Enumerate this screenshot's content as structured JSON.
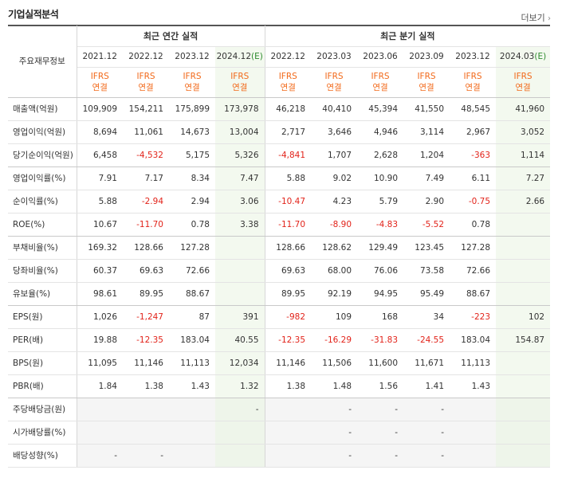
{
  "title": "기업실적분석",
  "more_label": "더보기",
  "corner_label": "주요재무정보",
  "groups": {
    "annual": "최근 연간 실적",
    "quarterly": "최근 분기 실적"
  },
  "periods": [
    {
      "label": "2021.12",
      "est": ""
    },
    {
      "label": "2022.12",
      "est": ""
    },
    {
      "label": "2023.12",
      "est": ""
    },
    {
      "label": "2024.12",
      "est": "(E)"
    },
    {
      "label": "2022.12",
      "est": ""
    },
    {
      "label": "2023.03",
      "est": ""
    },
    {
      "label": "2023.06",
      "est": ""
    },
    {
      "label": "2023.09",
      "est": ""
    },
    {
      "label": "2023.12",
      "est": ""
    },
    {
      "label": "2024.03",
      "est": "(E)"
    }
  ],
  "ifrs": {
    "line1": "IFRS",
    "line2": "연결"
  },
  "rows": [
    {
      "label": "매출액(억원)",
      "values": [
        "109,909",
        "154,211",
        "175,899",
        "173,978",
        "46,218",
        "40,410",
        "45,394",
        "41,550",
        "48,545",
        "41,960"
      ]
    },
    {
      "label": "영업이익(억원)",
      "values": [
        "8,694",
        "11,061",
        "14,673",
        "13,004",
        "2,717",
        "3,646",
        "4,946",
        "3,114",
        "2,967",
        "3,052"
      ]
    },
    {
      "label": "당기순이익(억원)",
      "values": [
        "6,458",
        "-4,532",
        "5,175",
        "5,326",
        "-4,841",
        "1,707",
        "2,628",
        "1,204",
        "-363",
        "1,114"
      ]
    },
    {
      "label": "영업이익률(%)",
      "values": [
        "7.91",
        "7.17",
        "8.34",
        "7.47",
        "5.88",
        "9.02",
        "10.90",
        "7.49",
        "6.11",
        "7.27"
      ]
    },
    {
      "label": "순이익률(%)",
      "values": [
        "5.88",
        "-2.94",
        "2.94",
        "3.06",
        "-10.47",
        "4.23",
        "5.79",
        "2.90",
        "-0.75",
        "2.66"
      ]
    },
    {
      "label": "ROE(%)",
      "values": [
        "10.67",
        "-11.70",
        "0.78",
        "3.38",
        "-11.70",
        "-8.90",
        "-4.83",
        "-5.52",
        "0.78",
        ""
      ]
    },
    {
      "label": "부채비율(%)",
      "values": [
        "169.32",
        "128.66",
        "127.28",
        "",
        "128.66",
        "128.62",
        "129.49",
        "123.45",
        "127.28",
        ""
      ]
    },
    {
      "label": "당좌비율(%)",
      "values": [
        "60.37",
        "69.63",
        "72.66",
        "",
        "69.63",
        "68.00",
        "76.06",
        "73.58",
        "72.66",
        ""
      ]
    },
    {
      "label": "유보율(%)",
      "values": [
        "98.61",
        "89.95",
        "88.67",
        "",
        "89.95",
        "92.19",
        "94.95",
        "95.49",
        "88.67",
        ""
      ]
    },
    {
      "label": "EPS(원)",
      "values": [
        "1,026",
        "-1,247",
        "87",
        "391",
        "-982",
        "109",
        "168",
        "34",
        "-223",
        "102"
      ]
    },
    {
      "label": "PER(배)",
      "values": [
        "19.88",
        "-12.35",
        "183.04",
        "40.55",
        "-12.35",
        "-16.29",
        "-31.83",
        "-24.55",
        "183.04",
        "154.87"
      ]
    },
    {
      "label": "BPS(원)",
      "values": [
        "11,095",
        "11,146",
        "11,113",
        "12,034",
        "11,146",
        "11,506",
        "11,600",
        "11,671",
        "11,113",
        ""
      ]
    },
    {
      "label": "PBR(배)",
      "values": [
        "1.84",
        "1.38",
        "1.43",
        "1.32",
        "1.38",
        "1.48",
        "1.56",
        "1.41",
        "1.43",
        ""
      ]
    },
    {
      "label": "주당배당금(원)",
      "values": [
        "",
        "",
        "",
        "-",
        "",
        "-",
        "-",
        "-",
        "",
        ""
      ]
    },
    {
      "label": "시가배당률(%)",
      "values": [
        "",
        "",
        "",
        "",
        "",
        "-",
        "-",
        "-",
        "",
        ""
      ]
    },
    {
      "label": "배당성향(%)",
      "values": [
        "-",
        "-",
        "",
        "",
        "",
        "-",
        "-",
        "-",
        "",
        ""
      ]
    }
  ],
  "colors": {
    "ifrs": "#f26a1b",
    "negative": "#e2231a",
    "estimate_bg": "#f3f9ef",
    "estimate_tag": "#2e8b2e"
  }
}
